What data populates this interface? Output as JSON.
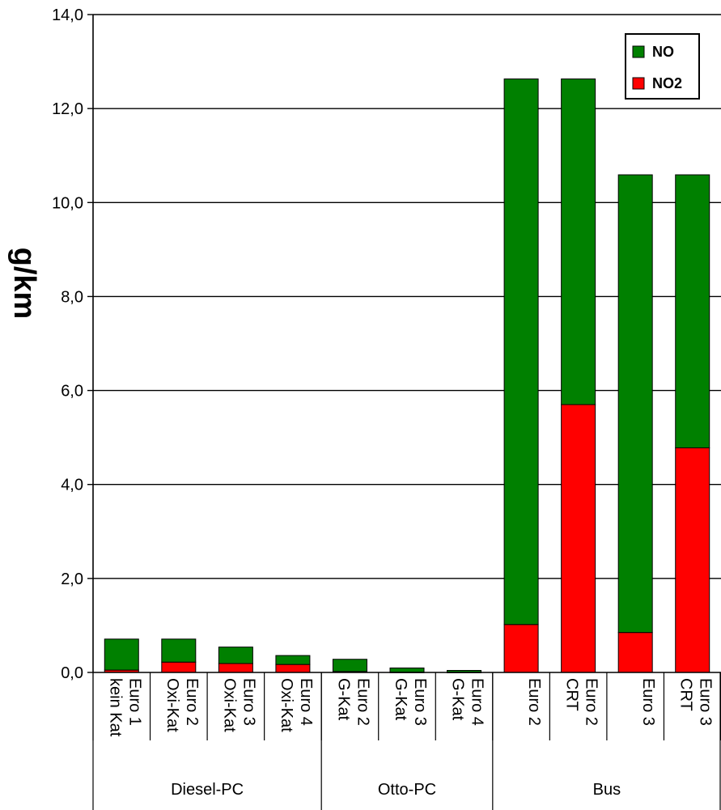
{
  "chart_data": {
    "type": "bar",
    "stacked": true,
    "title": "",
    "xlabel": "",
    "ylabel": "g/km",
    "ylim": [
      0,
      14
    ],
    "yticks": [
      "0,0",
      "2,0",
      "4,0",
      "6,0",
      "8,0",
      "10,0",
      "12,0",
      "14,0"
    ],
    "grid": true,
    "legend_position": "top-right",
    "categories": [
      [
        "Euro 1",
        "kein Kat"
      ],
      [
        "Euro 2",
        "Oxi-Kat"
      ],
      [
        "Euro 3",
        "Oxi-Kat"
      ],
      [
        "Euro 4",
        "Oxi-Kat"
      ],
      [
        "Euro 2",
        "G-Kat"
      ],
      [
        "Euro 3",
        "G-Kat"
      ],
      [
        "Euro 4",
        "G-Kat"
      ],
      [
        "Euro 2",
        ""
      ],
      [
        "Euro 2",
        "CRT"
      ],
      [
        "Euro 3",
        ""
      ],
      [
        "Euro 3",
        "CRT"
      ]
    ],
    "groups": [
      {
        "name": "Diesel-PC",
        "count": 4
      },
      {
        "name": "Otto-PC",
        "count": 3
      },
      {
        "name": "Bus",
        "count": 4
      }
    ],
    "series": [
      {
        "name": "NO2",
        "color": "#ff0000",
        "values": [
          0.05,
          0.22,
          0.19,
          0.17,
          0.02,
          0.005,
          0.003,
          1.02,
          5.7,
          0.85,
          4.78
        ]
      },
      {
        "name": "NO",
        "color": "#008000",
        "values": [
          0.66,
          0.49,
          0.35,
          0.19,
          0.26,
          0.09,
          0.04,
          11.61,
          6.93,
          9.74,
          5.81
        ]
      }
    ],
    "legend": [
      {
        "name": "NO",
        "color": "#008000"
      },
      {
        "name": "NO2",
        "color": "#ff0000"
      }
    ]
  }
}
